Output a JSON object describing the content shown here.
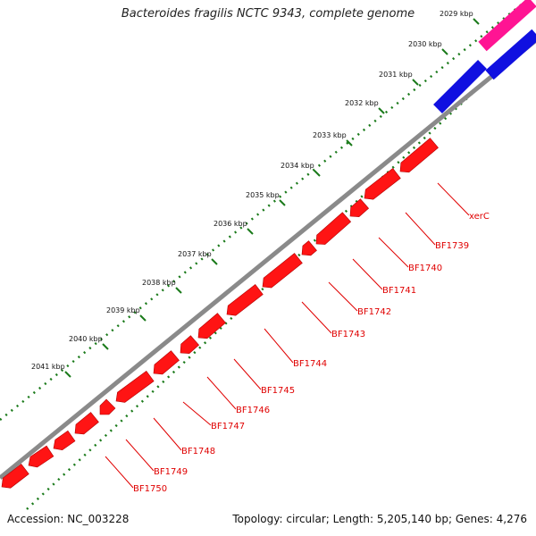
{
  "title": "Bacteroides fragilis NCTC 9343, complete genome",
  "footer": {
    "accession": "Accession: NC_003228",
    "summary": "Topology: circular; Length: 5,205,140 bp; Genes: 4,276"
  },
  "colors": {
    "backbone": "#8a8a8a",
    "forward_gene": "#ff1414",
    "reverse_gene_blue": "#1010e0",
    "reverse_gene_magenta": "#ff1493",
    "tick": "#1a7a1a",
    "label": "#e00000"
  },
  "kbp_ticks": [
    "2029 kbp",
    "2030 kbp",
    "2031 kbp",
    "2032 kbp",
    "2033 kbp",
    "2034 kbp",
    "2035 kbp",
    "2036 kbp",
    "2037 kbp",
    "2038 kbp",
    "2039 kbp",
    "2040 kbp",
    "2041 kbp"
  ],
  "genes": [
    "xerC",
    "BF1739",
    "BF1740",
    "BF1741",
    "BF1742",
    "BF1743",
    "BF1744",
    "BF1745",
    "BF1746",
    "BF1747",
    "BF1748",
    "BF1749",
    "BF1750"
  ]
}
